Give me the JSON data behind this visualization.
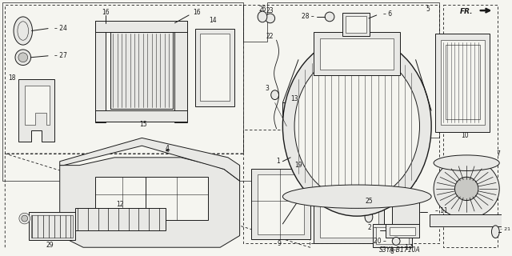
{
  "bg_color": "#f5f5f0",
  "line_color": "#1a1a1a",
  "fig_width": 6.4,
  "fig_height": 3.2,
  "dpi": 100,
  "diagram_code": "S3YA–B1710A",
  "fr_label": "FR.",
  "gray_fill": "#d8d8d8",
  "light_gray": "#e8e8e5",
  "mid_gray": "#c8c8c4"
}
